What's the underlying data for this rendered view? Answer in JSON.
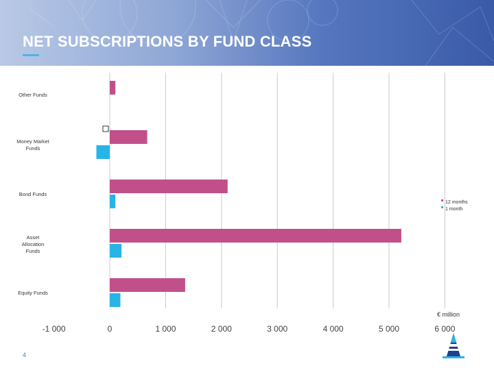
{
  "header": {
    "title": "NET SUBSCRIPTIONS BY FUND CLASS"
  },
  "page_number": "4",
  "colors": {
    "twelve_months": "#c1508a",
    "one_month": "#29b4e6",
    "header_start": "#b9c9e6",
    "header_end": "#3a5aa8",
    "title_accent": "#4fb3e8"
  },
  "icons": {
    "logo": "logo-icon",
    "marker": "square-marker-icon"
  },
  "chart_data": {
    "type": "bar",
    "orientation": "horizontal",
    "categories": [
      "Other Funds",
      "Money Market Funds",
      "Bond Funds",
      "Asset Allocation Funds",
      "Equity Funds"
    ],
    "category_labels": [
      [
        "Other Funds"
      ],
      [
        "Money Market",
        "Funds"
      ],
      [
        "Bond Funds"
      ],
      [
        "Asset",
        "Allocation",
        "Funds"
      ],
      [
        "Equity Funds"
      ]
    ],
    "series": [
      {
        "name": "12 months",
        "color": "#c1508a",
        "values": [
          100,
          670,
          2110,
          5220,
          1350
        ]
      },
      {
        "name": "1 month",
        "color": "#29b4e6",
        "values": [
          null,
          -240,
          100,
          210,
          190
        ]
      }
    ],
    "xlim": [
      -1000,
      6000
    ],
    "xticks": [
      -1000,
      0,
      1000,
      2000,
      3000,
      4000,
      5000,
      6000
    ],
    "xtick_labels": [
      "-1 000",
      "0",
      "1 000",
      "2 000",
      "3 000",
      "4 000",
      "5 000",
      "6 000"
    ],
    "unit_label": "€ million",
    "grid": true,
    "legend": "right"
  }
}
